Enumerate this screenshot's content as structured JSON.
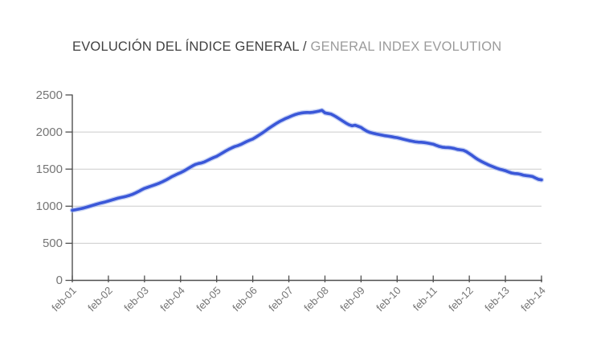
{
  "header": {
    "title_es": "EVOLUCIÓN DEL ÍNDICE GENERAL /",
    "title_en": " GENERAL INDEX EVOLUTION"
  },
  "colors": {
    "title_es": "#3f3f3f",
    "title_en": "#9b9b9b",
    "line": "#3a57d8",
    "line_halo": "#9db0ec",
    "grid": "#cccccc",
    "axis": "#4f4f4f",
    "tick_label": "#757575"
  },
  "chart_data": {
    "type": "line",
    "title": "Evolución del índice general / General index evolution",
    "xlabel": "",
    "ylabel": "",
    "legend": "none",
    "grid": "horizontal-only",
    "ylim": [
      0,
      2500
    ],
    "y_tick_values": [
      0,
      500,
      1000,
      1500,
      2000,
      2500
    ],
    "x_tick_labels": [
      "feb-01",
      "feb-02",
      "feb-03",
      "feb-04",
      "feb-05",
      "feb-06",
      "feb-07",
      "feb-08",
      "feb-09",
      "feb-10",
      "feb-11",
      "feb-12",
      "feb-13",
      "feb-14"
    ],
    "february_values_at_ticks": [
      945,
      1070,
      1240,
      1452,
      1672,
      1906,
      2200,
      2258,
      2062,
      1924,
      1836,
      1710,
      1478,
      1355
    ],
    "series": [
      {
        "name": "Índice general",
        "interval": "monthly",
        "x_start": "feb-01",
        "x_end": "feb-14",
        "values": [
          945,
          952,
          960,
          968,
          978,
          990,
          1002,
          1014,
          1026,
          1038,
          1048,
          1058,
          1070,
          1082,
          1094,
          1106,
          1116,
          1124,
          1134,
          1146,
          1160,
          1178,
          1198,
          1220,
          1240,
          1254,
          1268,
          1282,
          1296,
          1312,
          1330,
          1350,
          1372,
          1396,
          1415,
          1435,
          1452,
          1472,
          1496,
          1520,
          1544,
          1564,
          1576,
          1584,
          1598,
          1618,
          1638,
          1656,
          1672,
          1696,
          1720,
          1744,
          1766,
          1786,
          1804,
          1816,
          1832,
          1852,
          1872,
          1890,
          1906,
          1930,
          1956,
          1982,
          2010,
          2040,
          2068,
          2094,
          2120,
          2144,
          2164,
          2184,
          2200,
          2218,
          2234,
          2246,
          2255,
          2261,
          2264,
          2262,
          2266,
          2274,
          2282,
          2292,
          2258,
          2250,
          2242,
          2222,
          2198,
          2172,
          2146,
          2120,
          2098,
          2084,
          2092,
          2078,
          2062,
          2034,
          2010,
          1994,
          1984,
          1974,
          1966,
          1958,
          1950,
          1944,
          1938,
          1930,
          1924,
          1914,
          1904,
          1894,
          1884,
          1876,
          1868,
          1864,
          1862,
          1858,
          1852,
          1844,
          1836,
          1820,
          1806,
          1796,
          1792,
          1790,
          1786,
          1778,
          1766,
          1760,
          1754,
          1736,
          1710,
          1682,
          1652,
          1626,
          1604,
          1584,
          1564,
          1546,
          1530,
          1514,
          1500,
          1490,
          1478,
          1462,
          1448,
          1441,
          1438,
          1430,
          1418,
          1412,
          1407,
          1400,
          1380,
          1362,
          1355
        ]
      }
    ]
  }
}
